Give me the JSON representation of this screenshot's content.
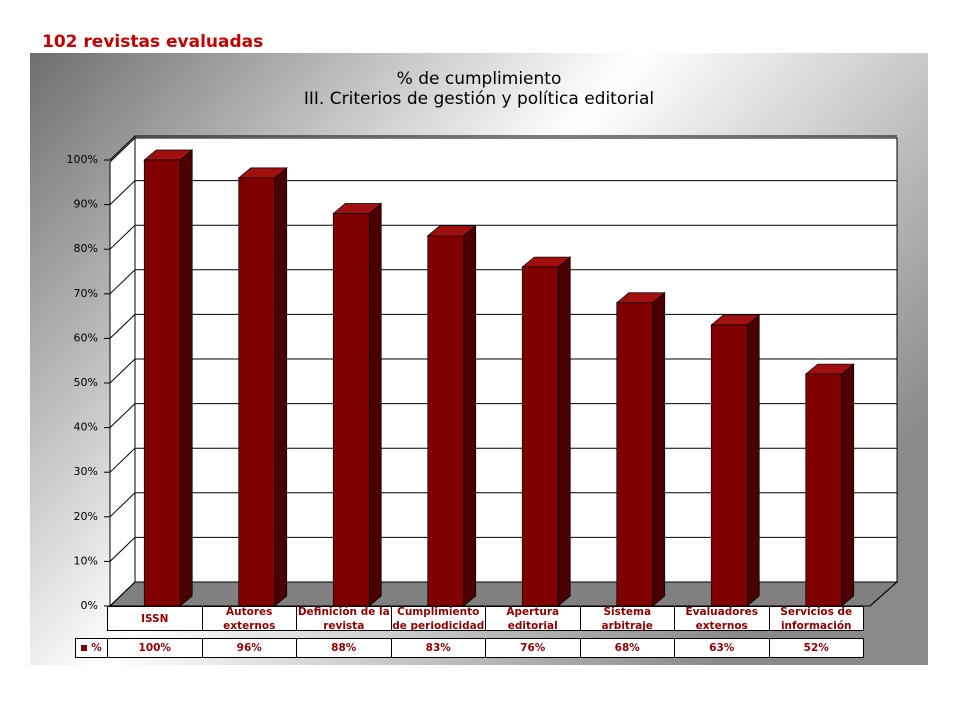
{
  "heading": "102 revistas evaluadas",
  "chart_data": {
    "type": "bar3d",
    "title": [
      "% de cumplimiento",
      "III. Criterios de gestión y política editorial"
    ],
    "categories": [
      "ISSN",
      "Autores\nexternos",
      "Definición de la\nrevista",
      "Cumplimiento\nde periodicidad",
      "Apertura\neditorial",
      "Sistema\narbitraje",
      "Evaluadores\nexternos",
      "Servicios de\ninformación"
    ],
    "series": [
      {
        "name": "%",
        "color": "#800000",
        "values": [
          100,
          96,
          88,
          83,
          76,
          68,
          63,
          52
        ],
        "value_labels": [
          "100%",
          "96%",
          "88%",
          "83%",
          "76%",
          "68%",
          "63%",
          "52%"
        ]
      }
    ],
    "ylim": [
      0,
      100
    ],
    "yticks": [
      {
        "value": 0,
        "label": "0%"
      },
      {
        "value": 10,
        "label": "10%"
      },
      {
        "value": 20,
        "label": "20%"
      },
      {
        "value": 30,
        "label": "30%"
      },
      {
        "value": 40,
        "label": "40%"
      },
      {
        "value": 50,
        "label": "50%"
      },
      {
        "value": 60,
        "label": "60%"
      },
      {
        "value": 70,
        "label": "70%"
      },
      {
        "value": 80,
        "label": "80%"
      },
      {
        "value": 90,
        "label": "90%"
      },
      {
        "value": 100,
        "label": "100%"
      }
    ],
    "grid": true
  }
}
